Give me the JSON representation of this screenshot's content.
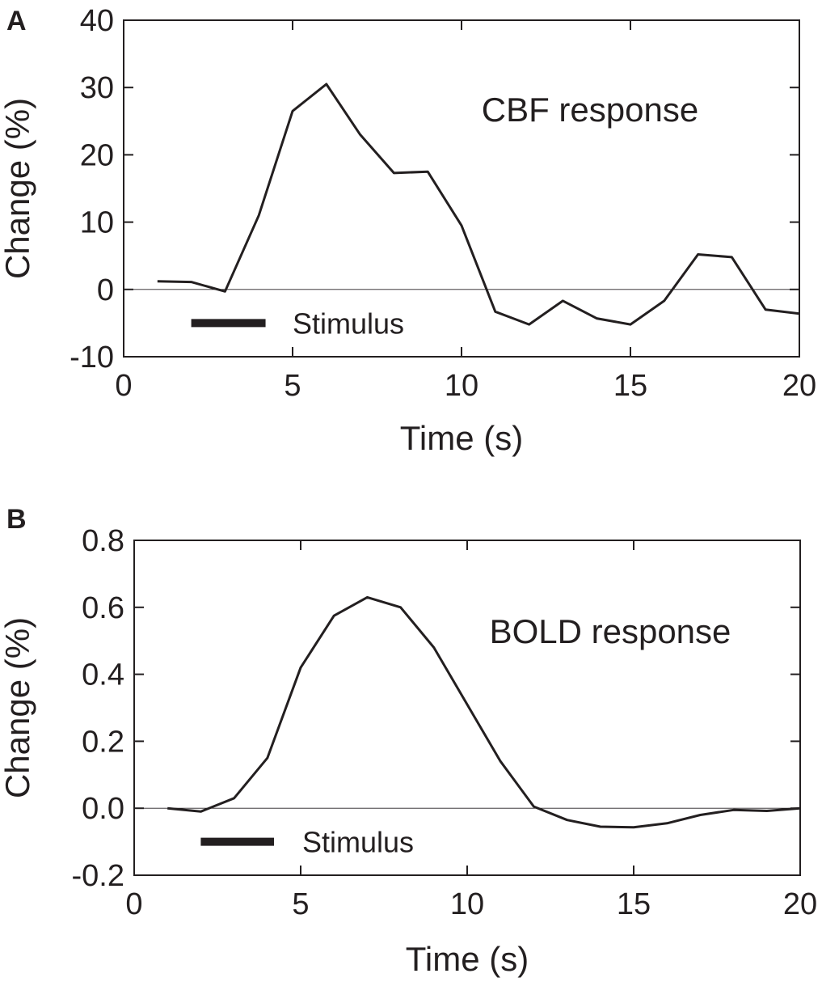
{
  "chart_data": [
    {
      "type": "line",
      "panel_label": "A",
      "annotation": "CBF response",
      "stimulus_label": "Stimulus",
      "stimulus_x": [
        2,
        4.2
      ],
      "stimulus_y": -5,
      "xlabel": "Time (s)",
      "ylabel": "Change (%)",
      "xlim": [
        0,
        20
      ],
      "ylim": [
        -10,
        40
      ],
      "xticks": [
        0,
        5,
        10,
        15,
        20
      ],
      "xtick_labels": [
        "0",
        "5",
        "10",
        "15",
        "20"
      ],
      "yticks": [
        -10,
        0,
        10,
        20,
        30,
        40
      ],
      "ytick_labels": [
        "-10",
        "0",
        "10",
        "20",
        "30",
        "40"
      ],
      "baseline": 0,
      "x": [
        1,
        2,
        3,
        4,
        5,
        6,
        7,
        8,
        9,
        10,
        11,
        12,
        13,
        14,
        15,
        16,
        17,
        18,
        19,
        20
      ],
      "values": [
        1.2,
        1.1,
        -0.3,
        11,
        26.5,
        30.5,
        23,
        17.3,
        17.5,
        9.5,
        -3.3,
        -5.2,
        -1.7,
        -4.3,
        -5.2,
        -1.7,
        5.2,
        4.8,
        -3,
        -3.6
      ]
    },
    {
      "type": "line",
      "panel_label": "B",
      "annotation": "BOLD response",
      "stimulus_label": "Stimulus",
      "stimulus_x": [
        2,
        4.2
      ],
      "stimulus_y": -0.1,
      "xlabel": "Time (s)",
      "ylabel": "Change (%)",
      "xlim": [
        0,
        20
      ],
      "ylim": [
        -0.2,
        0.8
      ],
      "xticks": [
        0,
        5,
        10,
        15,
        20
      ],
      "xtick_labels": [
        "0",
        "5",
        "10",
        "15",
        "20"
      ],
      "yticks": [
        -0.2,
        0,
        0.2,
        0.4,
        0.6,
        0.8
      ],
      "ytick_labels": [
        "-0.2",
        "0.0",
        "0.2",
        "0.4",
        "0.6",
        "0.8"
      ],
      "baseline": 0,
      "x": [
        1,
        2,
        3,
        4,
        5,
        6,
        7,
        8,
        9,
        10,
        11,
        12,
        13,
        14,
        15,
        16,
        17,
        18,
        19,
        20
      ],
      "values": [
        0,
        -0.01,
        0.03,
        0.15,
        0.42,
        0.575,
        0.63,
        0.6,
        0.48,
        0.31,
        0.14,
        0.005,
        -0.035,
        -0.055,
        -0.057,
        -0.045,
        -0.02,
        -0.005,
        -0.008,
        0
      ]
    }
  ]
}
